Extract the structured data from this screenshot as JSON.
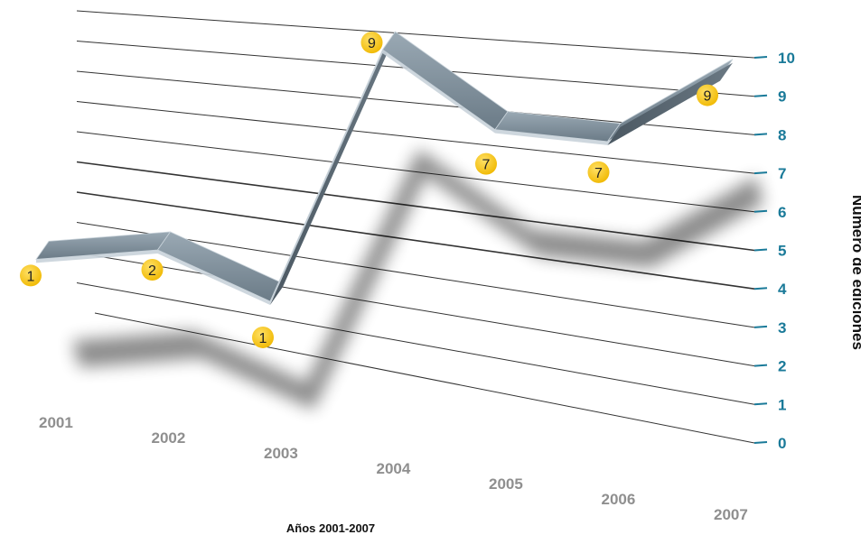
{
  "chart_data": {
    "type": "line",
    "xlabel": "Años 2001-2007",
    "ylabel": "Número de ediciones",
    "ylim": [
      0,
      10
    ],
    "yticks": [
      "0",
      "1",
      "2",
      "3",
      "4",
      "5",
      "6",
      "7",
      "8",
      "9",
      "10"
    ],
    "categories": [
      "2001",
      "2002",
      "2003",
      "2004",
      "2005",
      "2006",
      "2007"
    ],
    "values": [
      1,
      2,
      1,
      9,
      7,
      7,
      9
    ],
    "data_labels": [
      "1",
      "2",
      "1",
      "9",
      "7",
      "7",
      "9"
    ],
    "grid": true,
    "style": "3d-ribbon"
  },
  "colors": {
    "ribbon_top": "#7d8f9c",
    "ribbon_front": "#56646e",
    "ribbon_edge": "#c9d3da",
    "marker_fill": "#f5c400",
    "y_tick_text": "#1a7a99",
    "x_tick_text": "#8f8f8f",
    "grid_line": "#333333"
  }
}
